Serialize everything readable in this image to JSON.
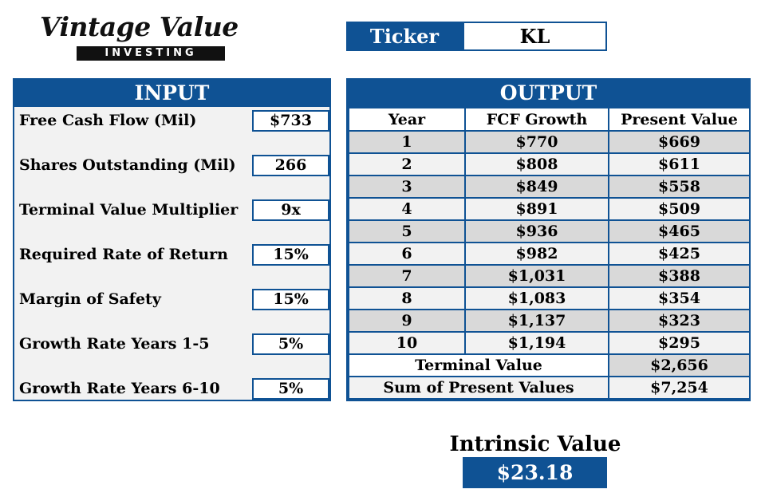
{
  "logo": {
    "script": "Vintage Value",
    "band": "INVESTING"
  },
  "ticker": {
    "label": "Ticker",
    "value": "KL"
  },
  "input": {
    "header": "INPUT",
    "rows": [
      {
        "label": "Free Cash Flow (Mil)",
        "value": "$733"
      },
      {
        "label": "Shares Outstanding (Mil)",
        "value": "266"
      },
      {
        "label": "Terminal Value Multiplier",
        "value": "9x"
      },
      {
        "label": "Required Rate of Return",
        "value": "15%"
      },
      {
        "label": "Margin of Safety",
        "value": "15%"
      },
      {
        "label": "Growth Rate Years 1-5",
        "value": "5%"
      },
      {
        "label": "Growth Rate Years 6-10",
        "value": "5%"
      }
    ]
  },
  "output": {
    "header": "OUTPUT",
    "columns": [
      "Year",
      "FCF Growth",
      "Present Value"
    ],
    "rows": [
      {
        "year": "1",
        "fcf": "$770",
        "pv": "$669"
      },
      {
        "year": "2",
        "fcf": "$808",
        "pv": "$611"
      },
      {
        "year": "3",
        "fcf": "$849",
        "pv": "$558"
      },
      {
        "year": "4",
        "fcf": "$891",
        "pv": "$509"
      },
      {
        "year": "5",
        "fcf": "$936",
        "pv": "$465"
      },
      {
        "year": "6",
        "fcf": "$982",
        "pv": "$425"
      },
      {
        "year": "7",
        "fcf": "$1,031",
        "pv": "$388"
      },
      {
        "year": "8",
        "fcf": "$1,083",
        "pv": "$354"
      },
      {
        "year": "9",
        "fcf": "$1,137",
        "pv": "$323"
      },
      {
        "year": "10",
        "fcf": "$1,194",
        "pv": "$295"
      }
    ],
    "terminal_label": "Terminal Value",
    "terminal_value": "$2,656",
    "sum_label": "Sum of Present Values",
    "sum_value": "$7,254"
  },
  "intrinsic": {
    "label": "Intrinsic Value",
    "value": "$23.18"
  },
  "colors": {
    "accent": "#0f5294",
    "shade": "#d9d9d9",
    "light": "#f2f2f2"
  }
}
